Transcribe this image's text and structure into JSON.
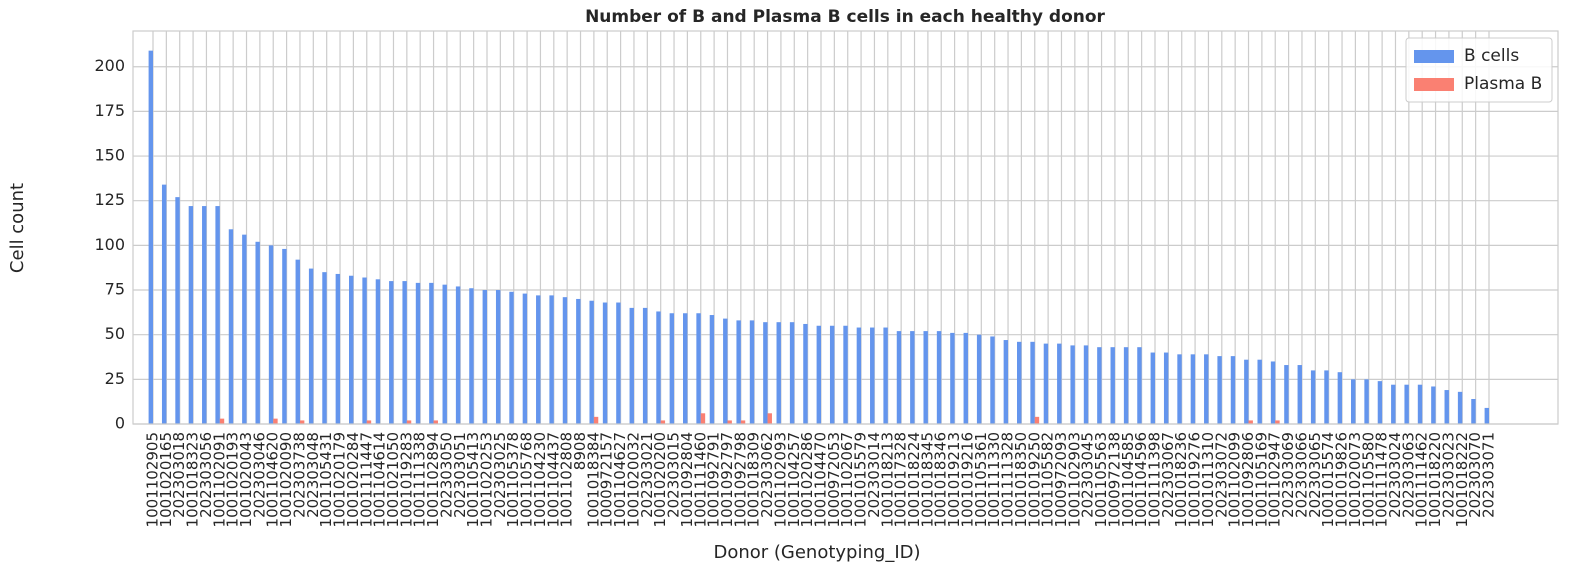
{
  "chart_data": {
    "type": "bar",
    "title": "Number of B and Plasma B cells in each healthy donor",
    "x_label": "Donor (Genotyping_ID)",
    "y_label": "Cell count",
    "categories": [
      "1001102905",
      "1001020165",
      "202303018",
      "1001018323",
      "202303056",
      "1001102091",
      "1001020193",
      "1001020043",
      "202303046",
      "1001104620",
      "1001020090",
      "202303738",
      "202303048",
      "1001105431",
      "1001020179",
      "1001020284",
      "1001111447",
      "1001104614",
      "1001021050",
      "1001019283",
      "1001111338",
      "1001102894",
      "202303050",
      "202303051",
      "1001105413",
      "1001020253",
      "202303025",
      "1001105378",
      "1001105768",
      "1001104230",
      "1001104437",
      "1001102808",
      "8908",
      "1001018384",
      "1000972157",
      "1001104627",
      "1001020032",
      "202303021",
      "1001020200",
      "202303015",
      "1001092804",
      "1001111460",
      "1001092791",
      "1001092797",
      "1001092798",
      "1001018309",
      "202303062",
      "1001102093",
      "1001104257",
      "1001020286",
      "1001104470",
      "1000972053",
      "1001102067",
      "1001015579",
      "202303014",
      "1001018213",
      "1001017328",
      "1001018224",
      "1001018345",
      "1001018346",
      "1001019213",
      "1001019216",
      "1001105361",
      "1001111330",
      "1001111328",
      "1001018350",
      "1001019250",
      "1001105582",
      "1000972093",
      "1001102903",
      "202303045",
      "1001105563",
      "1000972138",
      "1001104585",
      "1001104596",
      "1001111398",
      "202303067",
      "1001018236",
      "1001019276",
      "1001011310",
      "202303072",
      "1001102099",
      "1001092806",
      "1001105169",
      "1001102947",
      "202303069",
      "202303066",
      "202303065",
      "1001015574",
      "1001019826",
      "1001020073",
      "1001105580",
      "1001111478",
      "202303024",
      "202303063",
      "1001111462",
      "1001018220",
      "202303023",
      "1001018222",
      "202303070",
      "202303071"
    ],
    "series": [
      {
        "name": "B cells",
        "color": "#6495ed",
        "values": [
          209,
          134,
          127,
          122,
          122,
          122,
          109,
          106,
          102,
          100,
          98,
          92,
          87,
          85,
          84,
          83,
          82,
          81,
          80,
          80,
          79,
          79,
          78,
          77,
          76,
          75,
          75,
          74,
          73,
          72,
          72,
          71,
          70,
          69,
          68,
          68,
          65,
          65,
          63,
          62,
          62,
          62,
          61,
          59,
          58,
          58,
          57,
          57,
          57,
          56,
          55,
          55,
          55,
          54,
          54,
          54,
          52,
          52,
          52,
          52,
          51,
          51,
          50,
          49,
          47,
          46,
          46,
          45,
          45,
          44,
          44,
          43,
          43,
          43,
          43,
          40,
          40,
          39,
          39,
          39,
          38,
          38,
          36,
          36,
          35,
          33,
          33,
          30,
          30,
          29,
          25,
          25,
          24,
          22,
          22,
          22,
          21,
          19,
          18,
          14,
          9
        ]
      },
      {
        "name": "Plasma B",
        "color": "#fa8072",
        "values": [
          0,
          0,
          0,
          0,
          0,
          3,
          0,
          0,
          0,
          3,
          0,
          2,
          0,
          0,
          0,
          0,
          2,
          0,
          0,
          2,
          0,
          2,
          0,
          0,
          0,
          0,
          0,
          0,
          0,
          0,
          0,
          0,
          0,
          4,
          0,
          0,
          0,
          0,
          2,
          0,
          0,
          6,
          0,
          2,
          2,
          0,
          6,
          0,
          0,
          0,
          0,
          0,
          0,
          0,
          0,
          0,
          0,
          0,
          0,
          0,
          0,
          0,
          0,
          0,
          0,
          0,
          4,
          0,
          0,
          0,
          0,
          0,
          0,
          0,
          0,
          0,
          0,
          0,
          0,
          0,
          0,
          0,
          2,
          0,
          2,
          0,
          0,
          0,
          0,
          0,
          0,
          0,
          0,
          0,
          0,
          0,
          0,
          0,
          0,
          0,
          0
        ]
      }
    ],
    "ylim": [
      0,
      220
    ],
    "yticks": [
      0,
      25,
      50,
      75,
      100,
      125,
      150,
      175,
      200
    ],
    "grid": true,
    "legend": "upper right"
  }
}
